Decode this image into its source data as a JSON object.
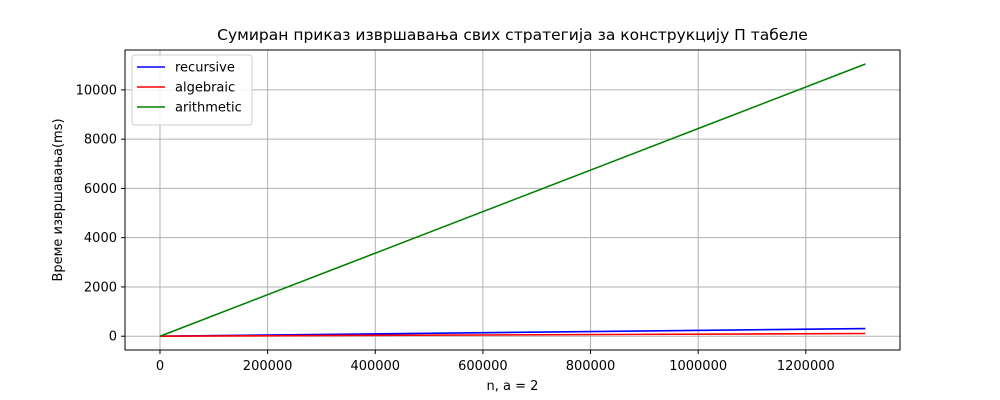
{
  "chart_data": {
    "type": "line",
    "title": "Сумиран приказ извршавања свих стратегија за конструкцију П табеле",
    "xlabel": "n, a = 2",
    "ylabel": "Време извршавања(ms)",
    "xlim": [
      -65000,
      1375000
    ],
    "ylim": [
      -560,
      11620
    ],
    "xticks": [
      0,
      200000,
      400000,
      600000,
      800000,
      1000000,
      1200000
    ],
    "yticks": [
      0,
      2000,
      4000,
      6000,
      8000,
      10000
    ],
    "grid": true,
    "legend_position": "top-left",
    "series": [
      {
        "name": "recursive",
        "color": "#0000ff",
        "x": [
          0,
          1310720
        ],
        "y": [
          0,
          310
        ]
      },
      {
        "name": "algebraic",
        "color": "#ff0000",
        "x": [
          0,
          1310720
        ],
        "y": [
          0,
          110
        ]
      },
      {
        "name": "arithmetic",
        "color": "#008000",
        "x": [
          0,
          1310720
        ],
        "y": [
          0,
          11050
        ]
      }
    ]
  }
}
